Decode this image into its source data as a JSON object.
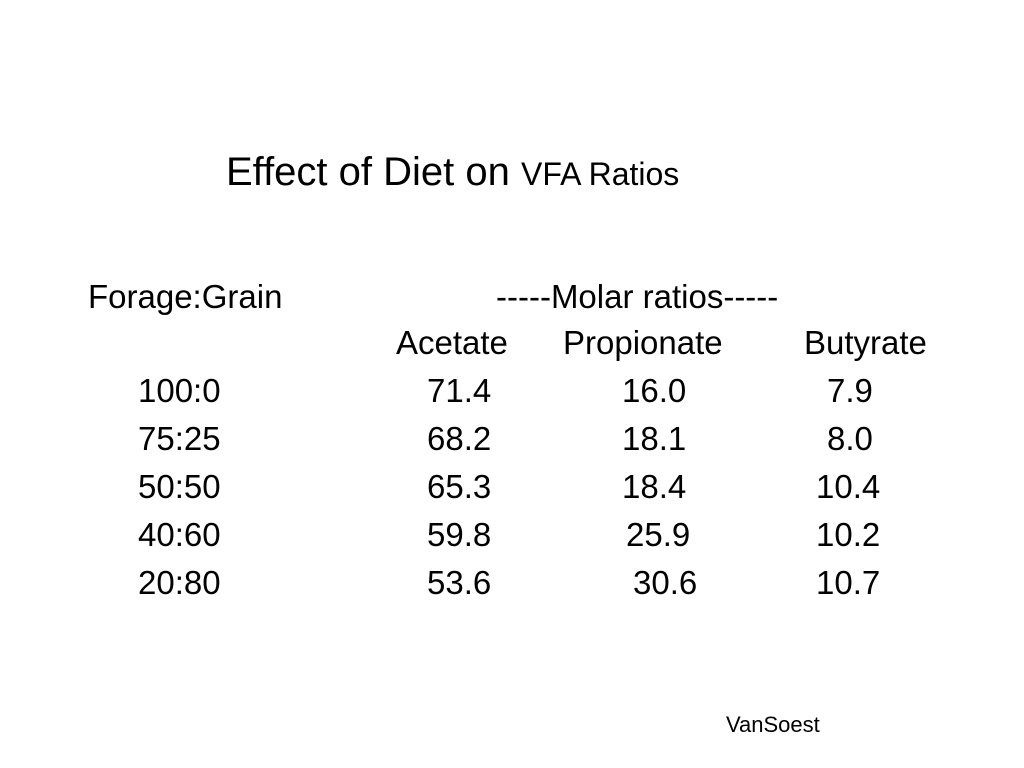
{
  "title": {
    "main": "Effect of Diet on ",
    "emphasis": "VFA Ratios"
  },
  "header": {
    "col1": "Forage:Grain",
    "group": "-----Molar ratios-----",
    "acetate": "Acetate",
    "propionate": "Propionate",
    "butyrate": "Butyrate"
  },
  "rows": [
    {
      "ratio": "100:0",
      "acetate": "71.4",
      "propionate": "16.0",
      "butyrate": "7.9"
    },
    {
      "ratio": "75:25",
      "acetate": "68.2",
      "propionate": "18.1",
      "butyrate": "8.0"
    },
    {
      "ratio": "50:50",
      "acetate": "65.3",
      "propionate": "18.4",
      "butyrate": "10.4"
    },
    {
      "ratio": "40:60",
      "acetate": "59.8",
      "propionate": "25.9",
      "butyrate": "10.2"
    },
    {
      "ratio": "20:80",
      "acetate": "53.6",
      "propionate": "30.6",
      "butyrate": "10.7"
    }
  ],
  "credit": "VanSoest"
}
